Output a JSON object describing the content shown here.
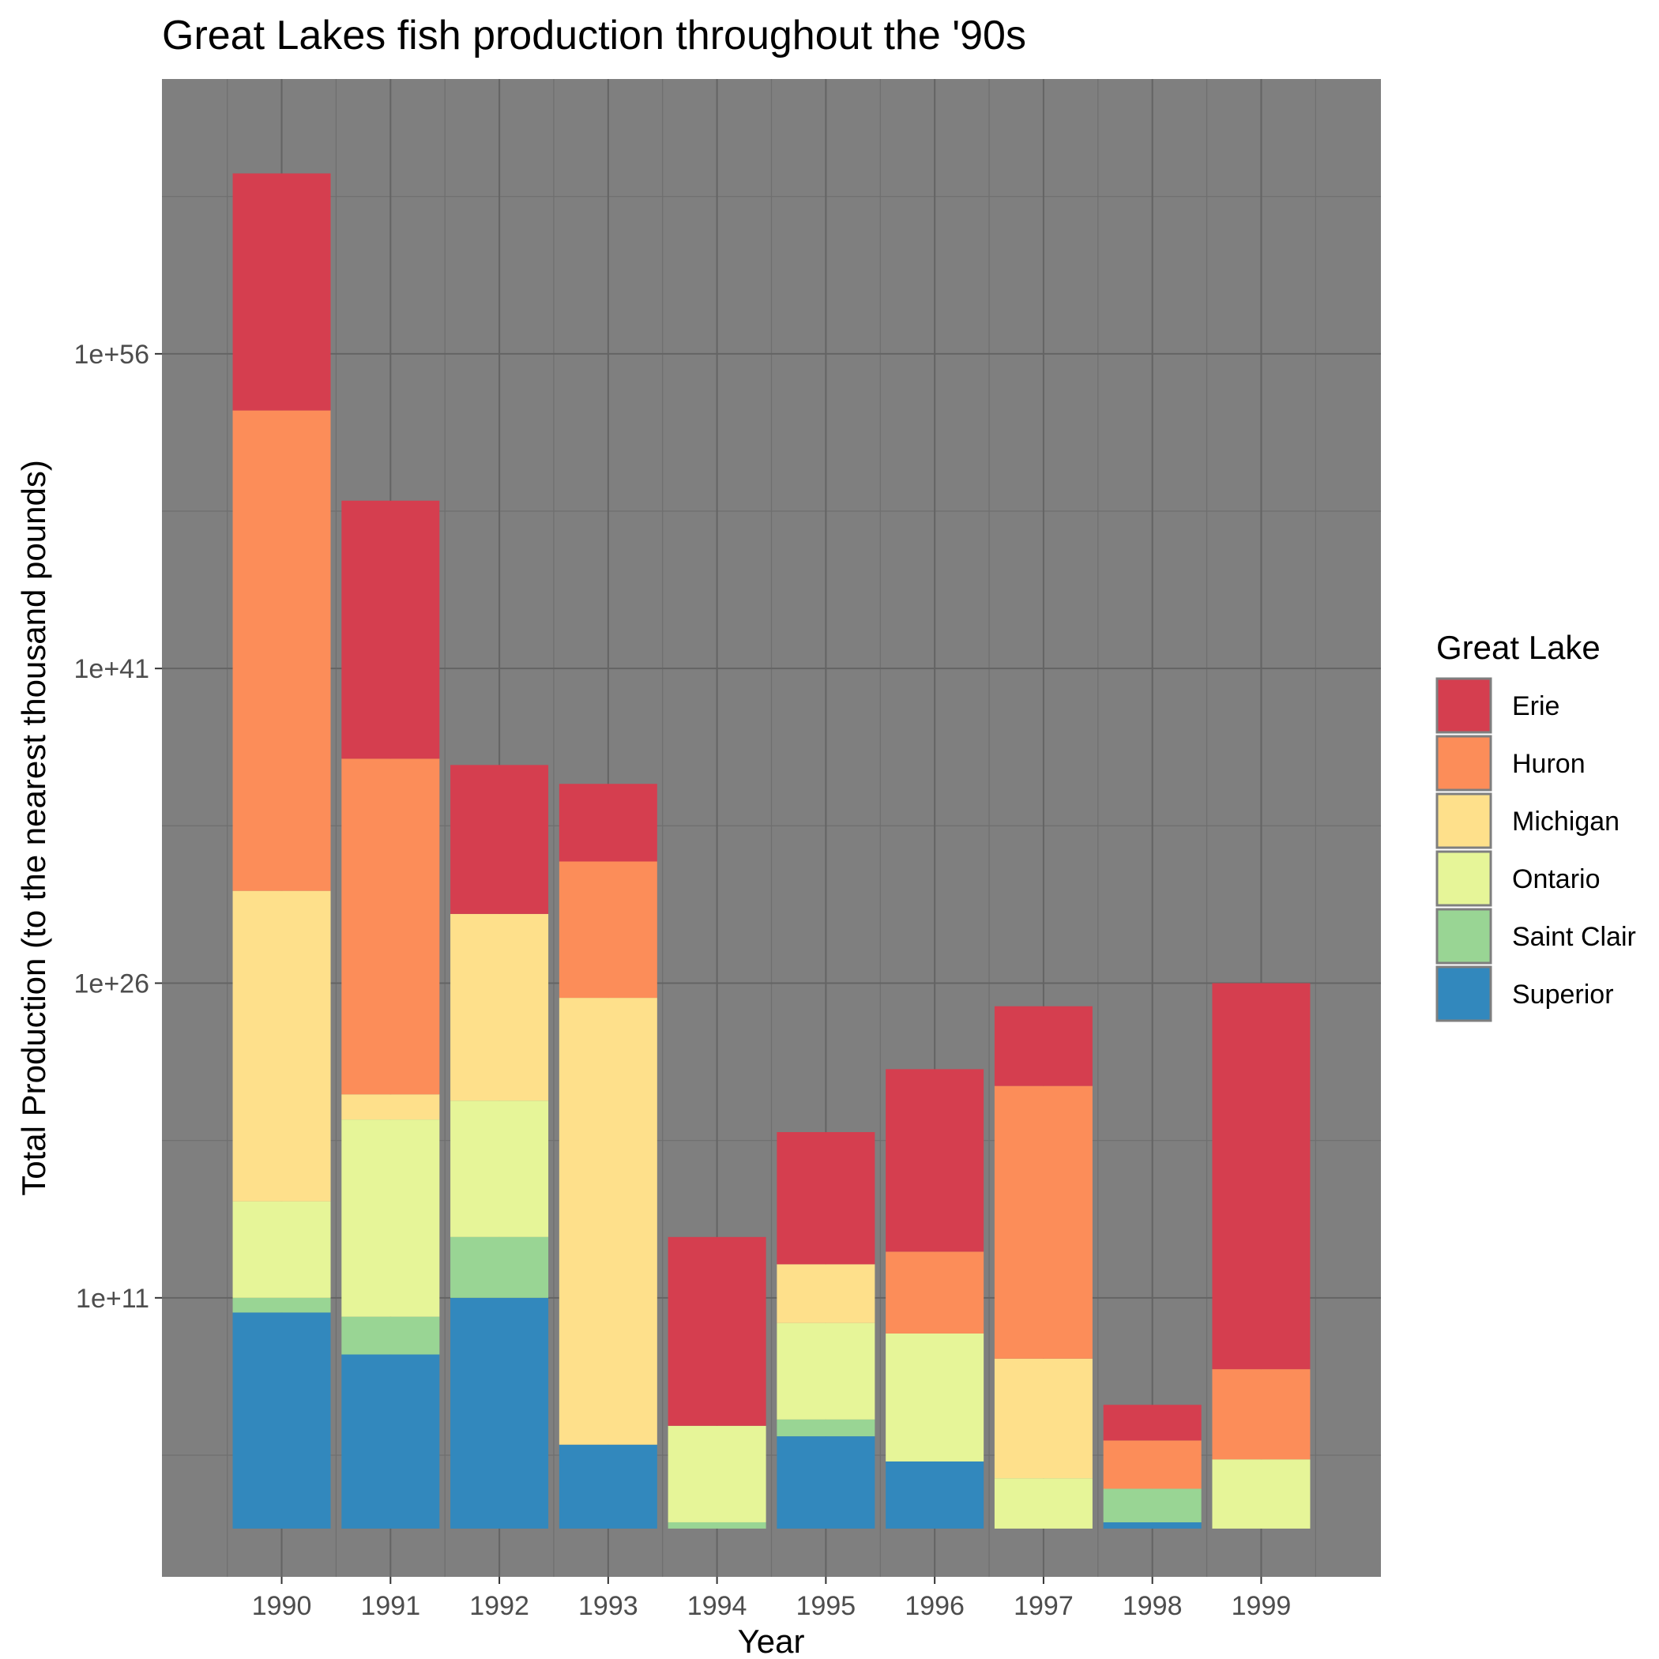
{
  "chart_data": {
    "type": "bar",
    "stacked": true,
    "title": "Great Lakes fish production throughout the '90s",
    "xlabel": "Year",
    "ylabel": "Total Production (to the nearest thousand pounds)",
    "y_scale": "log10",
    "ylim_log10": [
      -2.3,
      69.1
    ],
    "yticks": [
      {
        "label": "1e+11",
        "log10": 11
      },
      {
        "label": "1e+26",
        "log10": 26
      },
      {
        "label": "1e+41",
        "log10": 41
      },
      {
        "label": "1e+56",
        "log10": 56
      }
    ],
    "grid": true,
    "panel_background": "#7f7f7f",
    "categories": [
      "1990",
      "1991",
      "1992",
      "1993",
      "1994",
      "1995",
      "1996",
      "1997",
      "1998",
      "1999"
    ],
    "legend": {
      "title": "Great Lake",
      "position": "right"
    },
    "series_order_bottom_to_top": [
      "Superior",
      "Saint Clair",
      "Ontario",
      "Michigan",
      "Huron",
      "Erie"
    ],
    "legend_order": [
      "Erie",
      "Huron",
      "Michigan",
      "Ontario",
      "Saint Clair",
      "Superior"
    ],
    "colors": {
      "Erie": "#d53e4f",
      "Huron": "#fc8d59",
      "Michigan": "#fee08b",
      "Ontario": "#e6f598",
      "Saint Clair": "#99d594",
      "Superior": "#3288bd"
    },
    "cumulative_top_log10": {
      "Superior": [
        10.3,
        8.3,
        11.0,
        4.0,
        0.0,
        4.4,
        3.2,
        0.0,
        0.3,
        0.0
      ],
      "Saint Clair": [
        11.0,
        10.1,
        13.9,
        4.0,
        0.3,
        5.2,
        3.2,
        0.0,
        1.9,
        0.0
      ],
      "Ontario": [
        15.6,
        19.5,
        20.4,
        4.0,
        4.9,
        9.8,
        9.3,
        2.4,
        1.9,
        3.3
      ],
      "Michigan": [
        30.4,
        20.7,
        29.3,
        25.3,
        4.9,
        12.6,
        9.3,
        8.1,
        1.9,
        3.3
      ],
      "Huron": [
        53.3,
        36.7,
        29.3,
        31.8,
        4.9,
        12.6,
        13.2,
        21.1,
        4.2,
        7.6
      ],
      "Erie": [
        64.6,
        49.0,
        36.4,
        35.5,
        13.9,
        18.9,
        21.9,
        24.9,
        5.9,
        26.0
      ]
    }
  }
}
